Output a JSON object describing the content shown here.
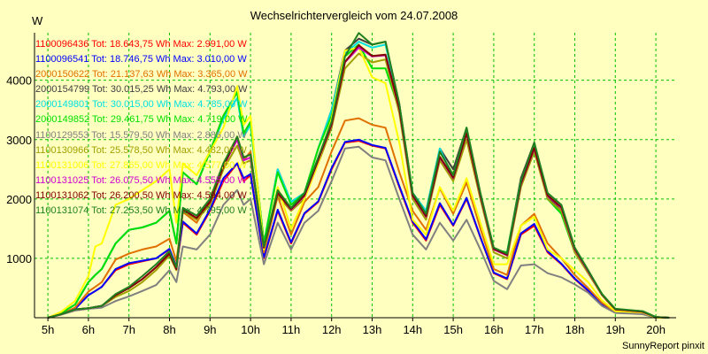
{
  "chart_data": {
    "type": "line",
    "title": "Wechselrichtervergleich vom 24.07.2008",
    "ylabel": "W",
    "footer": "SunnyReport pinxit",
    "xlim": [
      4.67,
      20.5
    ],
    "ylim": [
      0,
      4800
    ],
    "x_ticks": [
      "5h",
      "6h",
      "7h",
      "8h",
      "9h",
      "10h",
      "11h",
      "12h",
      "13h",
      "14h",
      "15h",
      "16h",
      "17h",
      "18h",
      "19h",
      "20h"
    ],
    "y_ticks": [
      1000,
      2000,
      3000,
      4000
    ],
    "grid": true,
    "legend_position": "top-left",
    "x": [
      5.0,
      5.33,
      5.67,
      6.0,
      6.17,
      6.33,
      6.67,
      7.0,
      7.33,
      7.67,
      8.0,
      8.17,
      8.33,
      8.67,
      9.0,
      9.33,
      9.67,
      9.83,
      10.0,
      10.33,
      10.67,
      11.0,
      11.33,
      11.67,
      12.0,
      12.33,
      12.67,
      13.0,
      13.33,
      13.67,
      14.0,
      14.33,
      14.67,
      15.0,
      15.33,
      15.67,
      16.0,
      16.33,
      16.67,
      17.0,
      17.33,
      17.67,
      18.0,
      18.33,
      18.67,
      19.0,
      19.33,
      19.67,
      20.0,
      20.33
    ],
    "series": [
      {
        "name": "1100096436 Tot: 18.643,75 Wh Max: 2.991,00 W",
        "color": "#ff0000",
        "values": [
          0,
          60,
          150,
          380,
          450,
          520,
          800,
          900,
          950,
          1000,
          1150,
          850,
          1600,
          1400,
          1800,
          2300,
          2600,
          2300,
          2400,
          1000,
          1800,
          1250,
          1750,
          1950,
          2500,
          2950,
          2980,
          2900,
          2850,
          2200,
          1600,
          1300,
          1900,
          1550,
          2000,
          1350,
          750,
          650,
          1400,
          1550,
          1100,
          900,
          650,
          450,
          220,
          90,
          80,
          70,
          0,
          0
        ]
      },
      {
        "name": "1100096541 Tot: 18.746,75 Wh Max: 3.010,00 W",
        "color": "#0000ff",
        "values": [
          0,
          60,
          150,
          380,
          450,
          520,
          820,
          920,
          960,
          1000,
          1160,
          860,
          1620,
          1420,
          1820,
          2350,
          2600,
          2350,
          2420,
          1020,
          1820,
          1270,
          1760,
          1960,
          2520,
          2960,
          3000,
          2910,
          2860,
          2220,
          1620,
          1320,
          1930,
          1560,
          2020,
          1360,
          760,
          660,
          1420,
          1580,
          1120,
          910,
          660,
          460,
          230,
          100,
          80,
          70,
          0,
          0
        ]
      },
      {
        "name": "2000150622 Tot: 21.137,63 Wh Max: 3.365,00 W",
        "color": "#e07000",
        "values": [
          0,
          60,
          170,
          440,
          520,
          600,
          980,
          1080,
          1150,
          1200,
          1330,
          950,
          1780,
          1600,
          2000,
          2600,
          3000,
          2650,
          2800,
          1100,
          2050,
          1400,
          1950,
          2200,
          2800,
          3320,
          3360,
          3250,
          3200,
          2450,
          1800,
          1480,
          2180,
          1750,
          2280,
          1500,
          820,
          720,
          1550,
          1750,
          1250,
          1000,
          720,
          500,
          250,
          100,
          90,
          80,
          0,
          0
        ]
      },
      {
        "name": "2000154799 Tot: 30.015,25 Wh Max: 4.793,00 W",
        "color": "#404040",
        "values": [
          0,
          80,
          220,
          600,
          720,
          820,
          1250,
          1480,
          1520,
          1600,
          1800,
          1250,
          2450,
          2250,
          2800,
          3400,
          3800,
          3100,
          3300,
          1250,
          2500,
          1950,
          2100,
          2850,
          3500,
          4500,
          4700,
          4600,
          4650,
          3600,
          2100,
          1800,
          2850,
          2500,
          3200,
          2100,
          1150,
          1100,
          2350,
          2950,
          2050,
          1800,
          1100,
          780,
          400,
          140,
          120,
          110,
          10,
          0
        ]
      },
      {
        "name": "2000149801 Tot: 30.015,00 Wh Max: 4.785,00 W",
        "color": "#00e0e0",
        "values": [
          0,
          80,
          220,
          600,
          720,
          820,
          1250,
          1480,
          1520,
          1600,
          1800,
          1250,
          2450,
          2250,
          2800,
          3350,
          3700,
          3050,
          3250,
          1250,
          2500,
          1950,
          2100,
          2850,
          3500,
          4450,
          4650,
          4550,
          4600,
          3550,
          2100,
          1800,
          2850,
          2350,
          3150,
          2050,
          1150,
          1100,
          2300,
          2900,
          2000,
          1750,
          1100,
          780,
          400,
          140,
          120,
          110,
          10,
          0
        ]
      },
      {
        "name": "2000149852 Tot: 29.461,75 Wh Max: 4.719,00 W",
        "color": "#00e000",
        "values": [
          0,
          80,
          220,
          600,
          720,
          820,
          1250,
          1480,
          1520,
          1600,
          1800,
          1250,
          2450,
          2250,
          2800,
          3400,
          3800,
          3100,
          3300,
          1250,
          2450,
          1900,
          2100,
          2850,
          3400,
          4400,
          4600,
          4200,
          4200,
          3500,
          2050,
          1750,
          2800,
          2400,
          3200,
          2050,
          1150,
          1100,
          2300,
          2900,
          2000,
          1750,
          1100,
          780,
          400,
          140,
          120,
          110,
          10,
          0
        ]
      },
      {
        "name": "1100129553 Tot: 15.579,50 Wh Max: 2.886,00 W",
        "color": "#808080",
        "values": [
          0,
          50,
          120,
          150,
          160,
          170,
          280,
          360,
          450,
          550,
          800,
          600,
          1200,
          1150,
          1400,
          1900,
          2150,
          1900,
          2000,
          900,
          1600,
          1150,
          1600,
          1800,
          2300,
          2850,
          2880,
          2700,
          2650,
          2000,
          1400,
          1150,
          1600,
          1300,
          1650,
          1150,
          620,
          480,
          880,
          900,
          750,
          680,
          560,
          420,
          200,
          80,
          70,
          60,
          0,
          0
        ]
      },
      {
        "name": "1100130966 Tot: 25.578,50 Wh Max: 4.482,00 W",
        "color": "#a0a000",
        "values": [
          0,
          60,
          140,
          160,
          180,
          200,
          350,
          450,
          600,
          800,
          1050,
          800,
          1800,
          1650,
          1900,
          2500,
          2900,
          2600,
          2650,
          1150,
          2050,
          1800,
          2000,
          2600,
          3200,
          4200,
          4450,
          4300,
          4350,
          3450,
          2000,
          1650,
          2650,
          2300,
          3000,
          2000,
          1100,
          1000,
          2200,
          2800,
          2000,
          1800,
          1100,
          750,
          380,
          130,
          110,
          100,
          10,
          0
        ]
      },
      {
        "name": "1100131006 Tot: 27.865,00 Wh Max: 4.577,00 W",
        "color": "#ffff00",
        "values": [
          0,
          100,
          280,
          700,
          1200,
          1250,
          1900,
          2000,
          2150,
          2300,
          2500,
          1600,
          2600,
          2400,
          2800,
          3200,
          3900,
          3250,
          3400,
          1150,
          2200,
          1500,
          2000,
          2600,
          3350,
          4500,
          4550,
          4050,
          3950,
          2950,
          1650,
          1400,
          2200,
          1800,
          2350,
          1600,
          900,
          900,
          1550,
          1700,
          1150,
          1000,
          800,
          600,
          290,
          110,
          100,
          90,
          0,
          0
        ]
      },
      {
        "name": "1100131025 Tot: 26.075,50 Wh Max: 4.555,00 W",
        "color": "#d000d0",
        "values": [
          0,
          60,
          140,
          160,
          180,
          200,
          380,
          500,
          650,
          850,
          1080,
          820,
          1820,
          1680,
          1950,
          2550,
          3000,
          2650,
          2700,
          1180,
          2100,
          1820,
          2050,
          2650,
          3250,
          4300,
          4550,
          4400,
          4420,
          3520,
          2050,
          1700,
          2700,
          2350,
          3100,
          2050,
          1150,
          1050,
          2250,
          2850,
          2050,
          1850,
          1150,
          780,
          390,
          140,
          120,
          100,
          10,
          0
        ]
      },
      {
        "name": "1100131062 Tot: 26.200,50 Wh Max: 4.594,00 W",
        "color": "#800000",
        "values": [
          0,
          60,
          140,
          160,
          180,
          200,
          380,
          500,
          650,
          850,
          1080,
          820,
          1820,
          1680,
          1950,
          2550,
          3050,
          2700,
          2750,
          1180,
          2100,
          1830,
          2060,
          2660,
          3260,
          4310,
          4590,
          4410,
          4430,
          3530,
          2060,
          1710,
          2710,
          2360,
          3110,
          2060,
          1160,
          1060,
          2260,
          2860,
          2060,
          1860,
          1160,
          790,
          390,
          140,
          120,
          100,
          10,
          0
        ]
      },
      {
        "name": "1100131074 Tot: 27.253,50 Wh Max: 4.795,00 W",
        "color": "#208020",
        "values": [
          0,
          60,
          140,
          160,
          180,
          200,
          400,
          520,
          700,
          900,
          1120,
          850,
          1850,
          1720,
          2000,
          2600,
          3050,
          2700,
          2750,
          1200,
          2150,
          1850,
          2100,
          2700,
          3300,
          4400,
          4795,
          4600,
          4650,
          3600,
          2100,
          1750,
          2800,
          2400,
          3200,
          2100,
          1180,
          1080,
          2300,
          2950,
          2100,
          1900,
          1180,
          800,
          400,
          150,
          130,
          110,
          10,
          0
        ]
      }
    ]
  }
}
